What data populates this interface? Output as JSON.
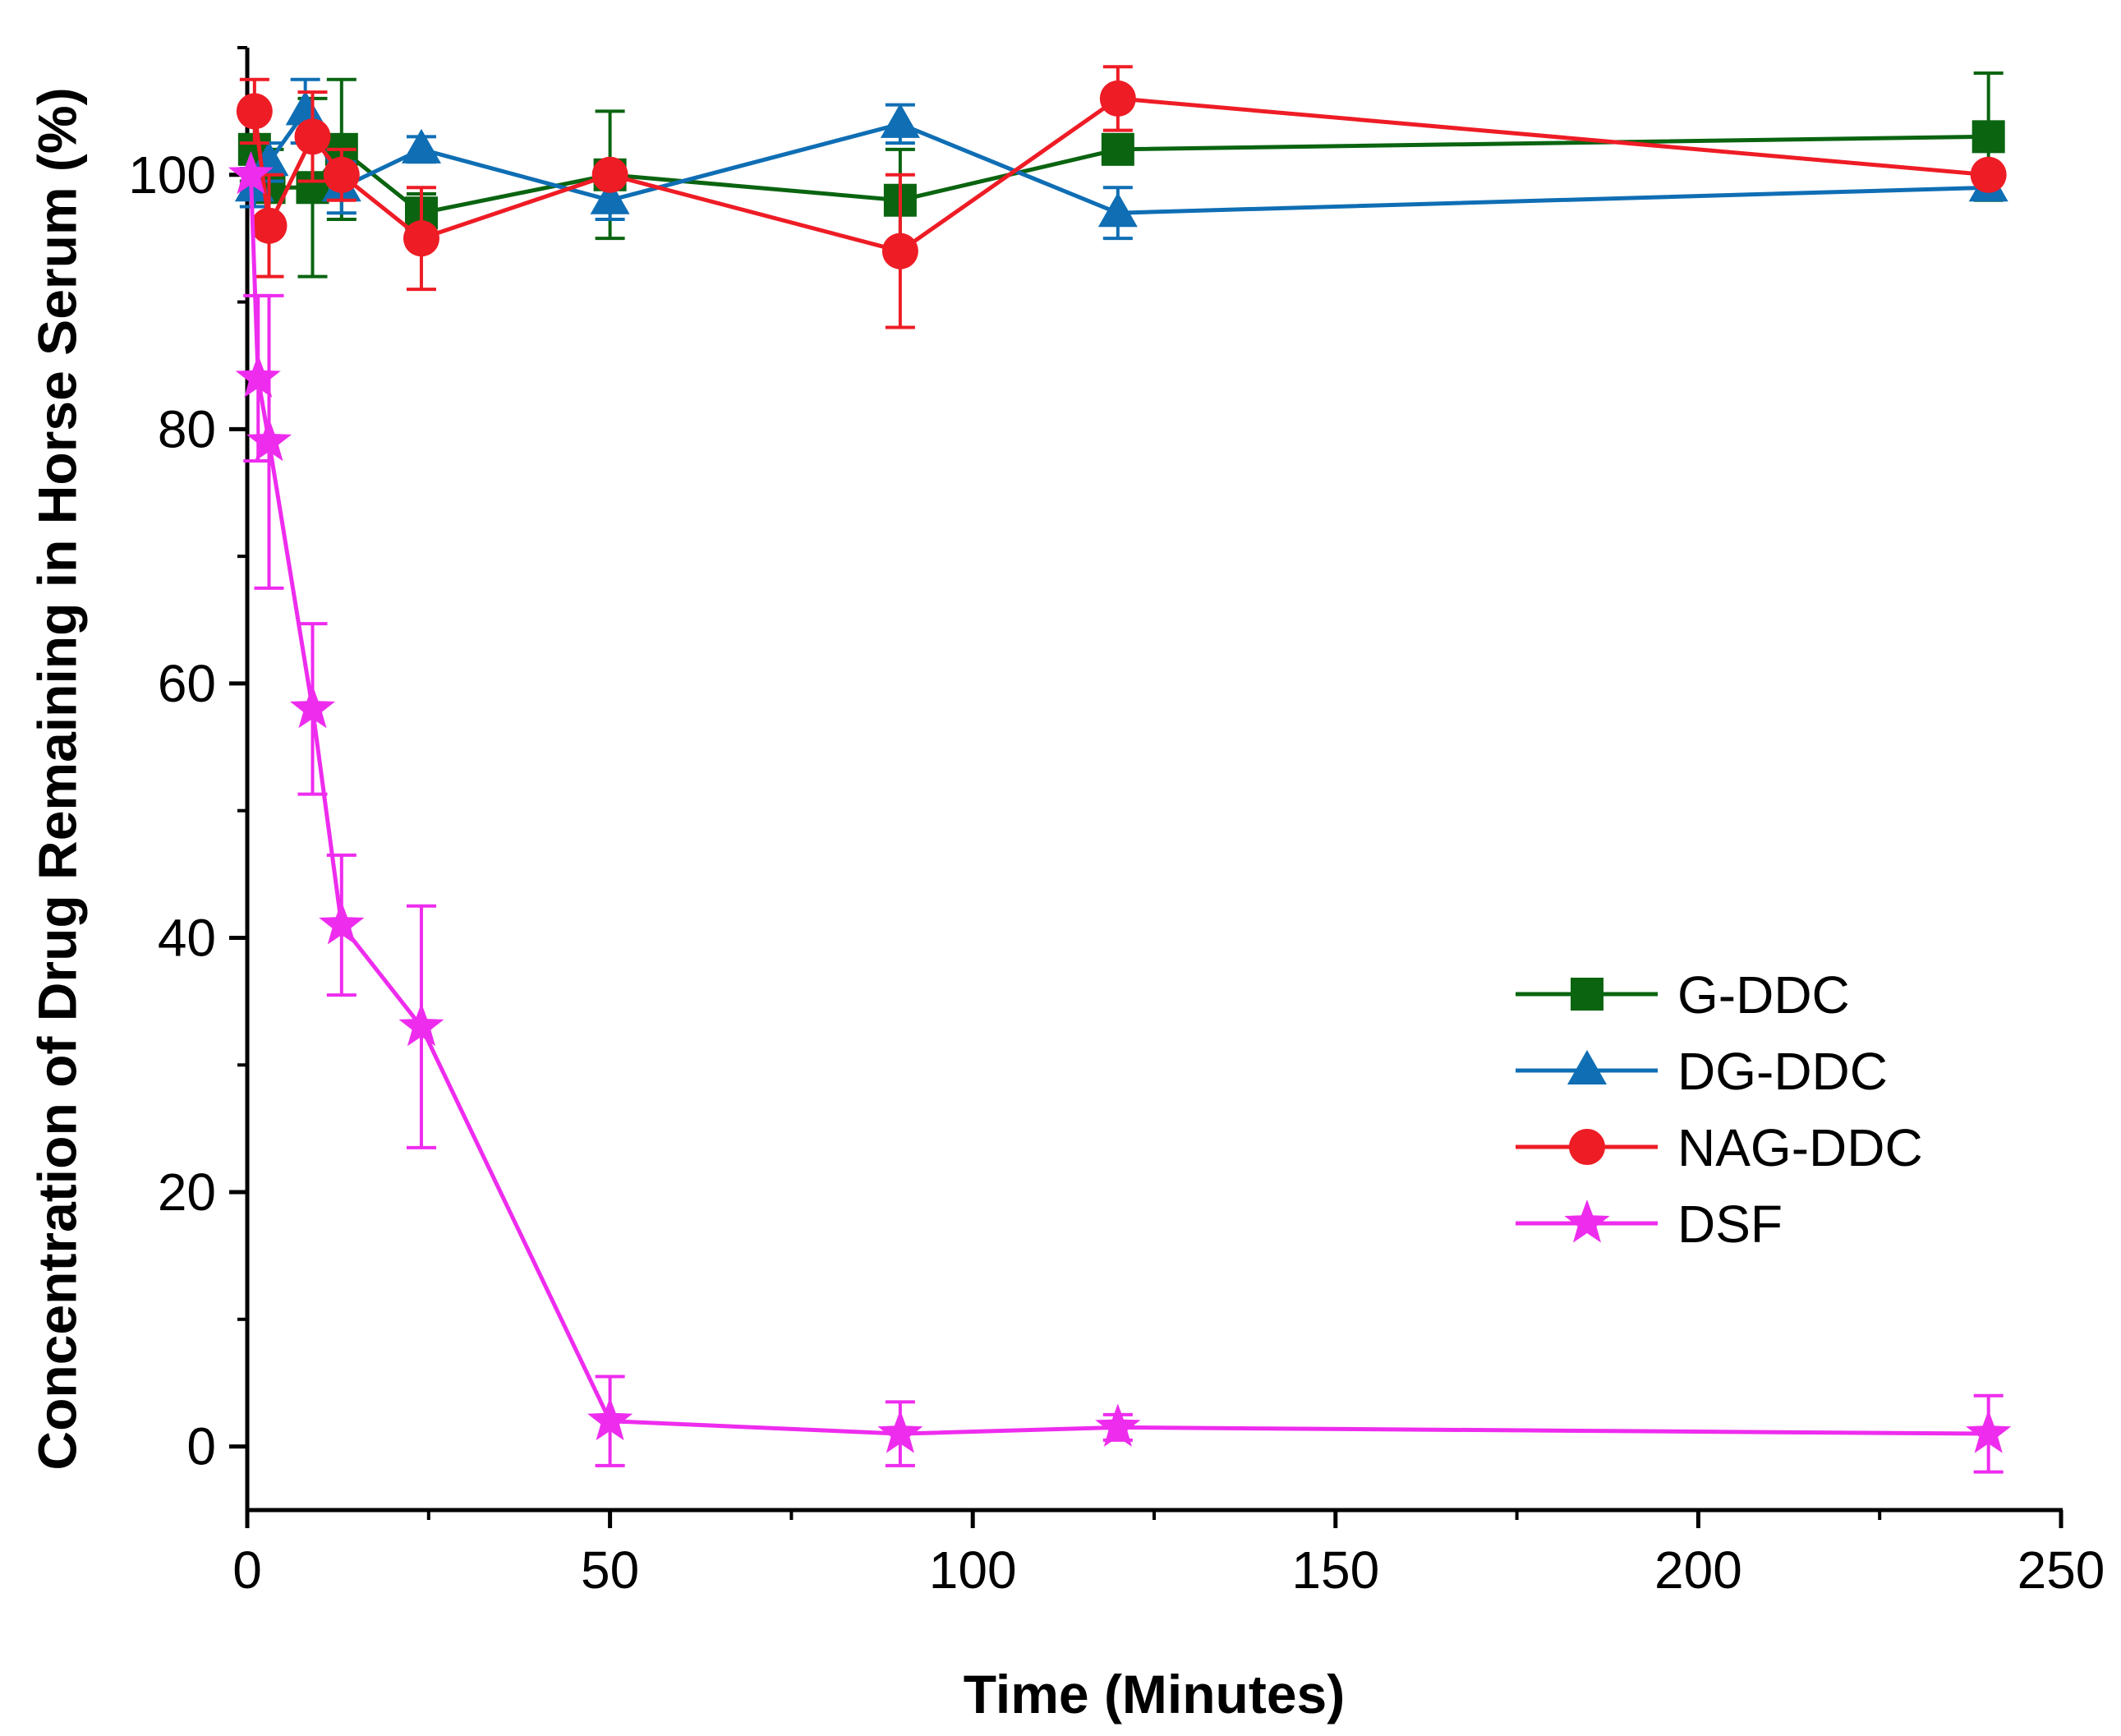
{
  "chart_data": {
    "type": "line",
    "title": "",
    "xlabel": "Time (Minutes)",
    "ylabel": "Concentration of Drug Remaining in Horse Serum (%)",
    "xlim": [
      0,
      250
    ],
    "ylim": [
      -5,
      110
    ],
    "xticks": [
      0,
      50,
      100,
      150,
      200,
      250
    ],
    "yticks": [
      0,
      20,
      40,
      60,
      80,
      100
    ],
    "xtick_labels": [
      "0",
      "50",
      "100",
      "150",
      "200",
      "250"
    ],
    "ytick_labels": [
      "0",
      "20",
      "40",
      "60",
      "80",
      "100"
    ],
    "grid": false,
    "legend_position": "center-right",
    "series": [
      {
        "name": "G-DDC",
        "color": "#0a6410",
        "marker": "square",
        "x": [
          1,
          3,
          9,
          13,
          24,
          50,
          90,
          120,
          240
        ],
        "y": [
          102,
          99,
          99,
          102,
          97,
          100,
          98,
          102,
          103
        ],
        "err": [
          2.5,
          3,
          7,
          5.5,
          1.5,
          5,
          4,
          0,
          5
        ]
      },
      {
        "name": "DG-DDC",
        "color": "#0f6eb4",
        "marker": "triangle",
        "x": [
          1,
          3,
          8,
          13,
          24,
          50,
          90,
          120,
          240
        ],
        "y": [
          99,
          101,
          105,
          99,
          102,
          98,
          104,
          97,
          99
        ],
        "err": [
          1.5,
          1.5,
          2.5,
          2,
          1,
          1.5,
          1.5,
          2,
          0
        ]
      },
      {
        "name": "NAG-DDC",
        "color": "#ee1c25",
        "marker": "circle",
        "x": [
          1,
          3,
          9,
          13,
          24,
          50,
          90,
          120,
          240
        ],
        "y": [
          105,
          96,
          103,
          100,
          95,
          100,
          94,
          106,
          100
        ],
        "err": [
          2.5,
          4,
          3.5,
          2,
          4,
          0,
          6,
          2.5,
          0
        ]
      },
      {
        "name": "DSF",
        "color": "#ee2cee",
        "marker": "star",
        "x": [
          0.5,
          1.5,
          3,
          9,
          13,
          24,
          50,
          90,
          120,
          240
        ],
        "y": [
          100,
          84,
          79,
          58,
          41,
          33,
          2,
          1,
          1.5,
          1
        ],
        "err": [
          0,
          6.5,
          11.5,
          6.7,
          5.5,
          9.5,
          3.5,
          2.5,
          1,
          3
        ]
      }
    ]
  }
}
